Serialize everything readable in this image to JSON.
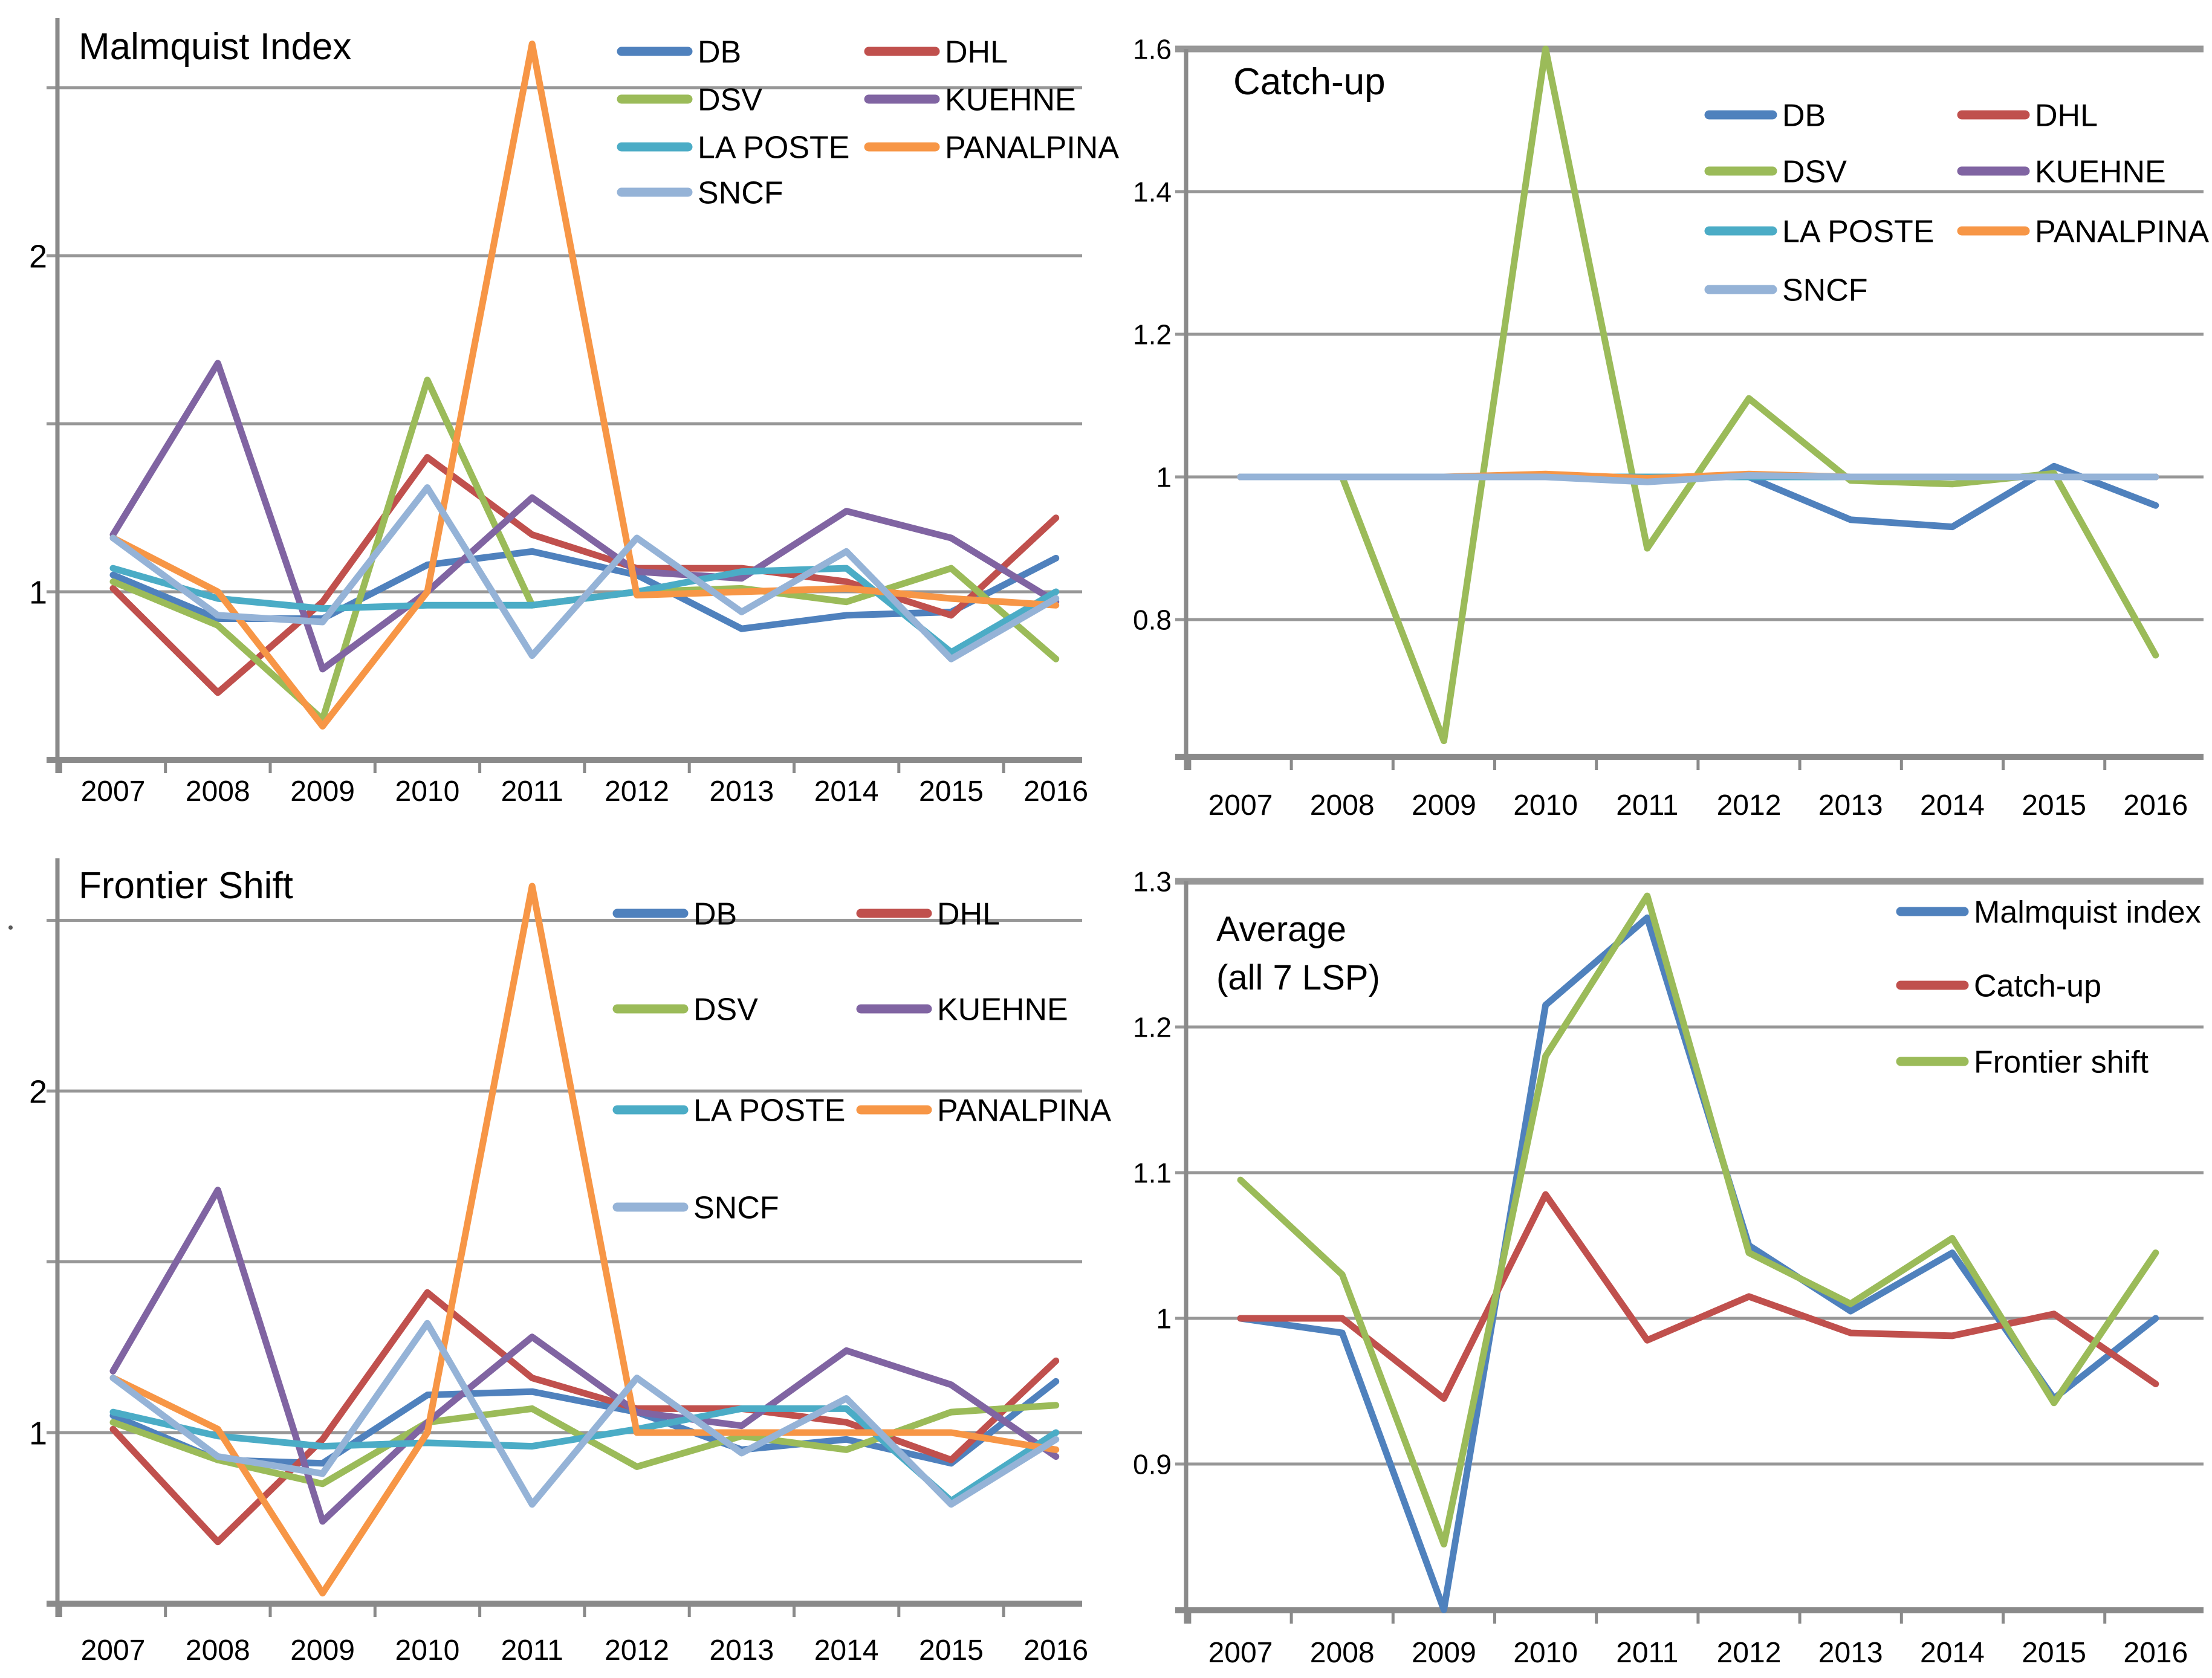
{
  "figure": {
    "background": "#ffffff",
    "text_color": "#000000",
    "gridline_color": "#979797",
    "axis_color": "#8a8a8a",
    "layout": "2x2 grid of line charts"
  },
  "years": [
    "2007",
    "2008",
    "2009",
    "2010",
    "2011",
    "2012",
    "2013",
    "2014",
    "2015",
    "2016"
  ],
  "series_colors": {
    "DB": "#4F81BD",
    "DHL": "#C0504D",
    "DSV": "#9BBB59",
    "KUEHNE": "#8064A2",
    "LA POSTE": "#4BACC6",
    "PANALPINA": "#F79646",
    "SNCF": "#95B3D7"
  },
  "chart_data": [
    {
      "id": "malmquist-index",
      "type": "line",
      "title": "Malmquist Index",
      "x": [
        "2007",
        "2008",
        "2009",
        "2010",
        "2011",
        "2012",
        "2013",
        "2014",
        "2015",
        "2016"
      ],
      "ylim": [
        0.5,
        2.7
      ],
      "grid": true,
      "legend_position": "inside top-right, 2 columns",
      "gridlines": [
        {
          "v": 2.5,
          "label": ""
        },
        {
          "v": 2.0,
          "label": "2"
        },
        {
          "v": 1.5,
          "label": ""
        },
        {
          "v": 1.0,
          "label": "1"
        }
      ],
      "series": [
        {
          "name": "DB",
          "color": "#4F81BD",
          "values": [
            1.05,
            0.92,
            0.92,
            1.08,
            1.12,
            1.05,
            0.89,
            0.93,
            0.94,
            1.1
          ]
        },
        {
          "name": "DHL",
          "color": "#C0504D",
          "values": [
            1.01,
            0.7,
            0.97,
            1.4,
            1.17,
            1.07,
            1.07,
            1.03,
            0.93,
            1.22
          ]
        },
        {
          "name": "DSV",
          "color": "#9BBB59",
          "values": [
            1.03,
            0.9,
            0.62,
            1.63,
            0.96,
            1.0,
            1.01,
            0.97,
            1.07,
            0.8
          ]
        },
        {
          "name": "KUEHNE",
          "color": "#8064A2",
          "values": [
            1.17,
            1.68,
            0.77,
            1.0,
            1.28,
            1.06,
            1.04,
            1.24,
            1.16,
            0.97
          ]
        },
        {
          "name": "LA POSTE",
          "color": "#4BACC6",
          "values": [
            1.07,
            0.98,
            0.95,
            0.96,
            0.96,
            1.0,
            1.06,
            1.07,
            0.82,
            1.0
          ]
        },
        {
          "name": "PANALPINA",
          "color": "#F79646",
          "values": [
            1.16,
            1.0,
            0.6,
            1.0,
            2.63,
            0.99,
            1.0,
            1.01,
            0.98,
            0.96
          ]
        },
        {
          "name": "SNCF",
          "color": "#95B3D7",
          "values": [
            1.16,
            0.93,
            0.91,
            1.31,
            0.81,
            1.16,
            0.94,
            1.12,
            0.8,
            0.98
          ]
        }
      ]
    },
    {
      "id": "catch-up",
      "type": "line",
      "title": "Catch-up",
      "x": [
        "2007",
        "2008",
        "2009",
        "2010",
        "2011",
        "2012",
        "2013",
        "2014",
        "2015",
        "2016"
      ],
      "ylim": [
        0.6,
        1.64
      ],
      "grid": true,
      "legend_position": "inside upper-right, 2 columns",
      "gridlines": [
        {
          "v": 1.6,
          "label": "1.6",
          "border": true
        },
        {
          "v": 1.4,
          "label": "1.4"
        },
        {
          "v": 1.2,
          "label": "1.2"
        },
        {
          "v": 1.0,
          "label": "1"
        },
        {
          "v": 0.8,
          "label": "0.8"
        }
      ],
      "series": [
        {
          "name": "DB",
          "color": "#4F81BD",
          "values": [
            1,
            1,
            1,
            1,
            1,
            1,
            0.94,
            0.93,
            1.015,
            0.96
          ]
        },
        {
          "name": "DHL",
          "color": "#C0504D",
          "values": [
            1,
            1,
            1,
            1,
            1,
            1,
            1,
            1,
            1,
            1
          ]
        },
        {
          "name": "DSV",
          "color": "#9BBB59",
          "values": [
            1,
            1,
            0.63,
            1.6,
            0.9,
            1.11,
            0.995,
            0.99,
            1.005,
            0.75
          ]
        },
        {
          "name": "KUEHNE",
          "color": "#8064A2",
          "values": [
            1,
            1,
            1,
            1,
            1,
            1,
            1,
            1,
            1,
            1
          ]
        },
        {
          "name": "LA POSTE",
          "color": "#4BACC6",
          "values": [
            1,
            1,
            1,
            1,
            1,
            1,
            1,
            1,
            1,
            1
          ]
        },
        {
          "name": "PANALPINA",
          "color": "#F79646",
          "values": [
            1,
            1,
            1,
            1.004,
            0.998,
            1.004,
            1,
            1,
            1,
            1
          ]
        },
        {
          "name": "SNCF",
          "color": "#95B3D7",
          "values": [
            1,
            1,
            1,
            1,
            0.993,
            1.002,
            1,
            1,
            1,
            1
          ]
        }
      ]
    },
    {
      "id": "frontier-shift",
      "type": "line",
      "title": "Frontier Shift",
      "x": [
        "2007",
        "2008",
        "2009",
        "2010",
        "2011",
        "2012",
        "2013",
        "2014",
        "2015",
        "2016"
      ],
      "ylim": [
        0.5,
        2.68
      ],
      "grid": true,
      "legend_position": "inside top-right, 2 columns",
      "gridlines": [
        {
          "v": 2.5,
          "label": ""
        },
        {
          "v": 2.0,
          "label": "2"
        },
        {
          "v": 1.5,
          "label": ""
        },
        {
          "v": 1.0,
          "label": "1"
        }
      ],
      "series": [
        {
          "name": "DB",
          "color": "#4F81BD",
          "values": [
            1.05,
            0.92,
            0.91,
            1.11,
            1.12,
            1.06,
            0.95,
            0.98,
            0.91,
            1.15
          ]
        },
        {
          "name": "DHL",
          "color": "#C0504D",
          "values": [
            1.01,
            0.68,
            0.98,
            1.41,
            1.16,
            1.07,
            1.07,
            1.03,
            0.92,
            1.21
          ]
        },
        {
          "name": "DSV",
          "color": "#9BBB59",
          "values": [
            1.03,
            0.92,
            0.85,
            1.03,
            1.07,
            0.9,
            0.99,
            0.95,
            1.06,
            1.08
          ]
        },
        {
          "name": "KUEHNE",
          "color": "#8064A2",
          "values": [
            1.18,
            1.71,
            0.74,
            1.03,
            1.28,
            1.06,
            1.02,
            1.24,
            1.14,
            0.93
          ]
        },
        {
          "name": "LA POSTE",
          "color": "#4BACC6",
          "values": [
            1.06,
            0.99,
            0.96,
            0.97,
            0.96,
            1.01,
            1.07,
            1.07,
            0.8,
            1.0
          ]
        },
        {
          "name": "PANALPINA",
          "color": "#F79646",
          "values": [
            1.16,
            1.01,
            0.53,
            1.0,
            2.6,
            1.0,
            1.0,
            1.0,
            1.0,
            0.95
          ]
        },
        {
          "name": "SNCF",
          "color": "#95B3D7",
          "values": [
            1.16,
            0.93,
            0.88,
            1.32,
            0.79,
            1.16,
            0.94,
            1.1,
            0.79,
            0.98
          ]
        }
      ]
    },
    {
      "id": "average-all-7-lsp",
      "type": "line",
      "title": "Average (all 7 LSP)",
      "title_line1": "Average",
      "title_line2": "(all 7 LSP)",
      "x": [
        "2007",
        "2008",
        "2009",
        "2010",
        "2011",
        "2012",
        "2013",
        "2014",
        "2015",
        "2016"
      ],
      "ylim": [
        0.8,
        1.3
      ],
      "grid": true,
      "legend_position": "inside right, 1 column",
      "gridlines": [
        {
          "v": 1.3,
          "label": "1.3",
          "border": true
        },
        {
          "v": 1.2,
          "label": "1.2"
        },
        {
          "v": 1.1,
          "label": "1.1"
        },
        {
          "v": 1.0,
          "label": "1"
        },
        {
          "v": 0.9,
          "label": "0.9"
        }
      ],
      "series": [
        {
          "name": "Malmquist index",
          "color": "#4F81BD",
          "values": [
            1.0,
            0.99,
            0.8,
            1.215,
            1.275,
            1.05,
            1.005,
            1.045,
            0.945,
            1.0
          ]
        },
        {
          "name": "Catch-up",
          "color": "#C0504D",
          "values": [
            1.0,
            1.0,
            0.945,
            1.085,
            0.985,
            1.015,
            0.99,
            0.988,
            1.003,
            0.955
          ]
        },
        {
          "name": "Frontier shift",
          "color": "#9BBB59",
          "values": [
            1.095,
            1.03,
            0.845,
            1.18,
            1.29,
            1.045,
            1.01,
            1.055,
            0.942,
            1.045
          ]
        }
      ]
    }
  ]
}
